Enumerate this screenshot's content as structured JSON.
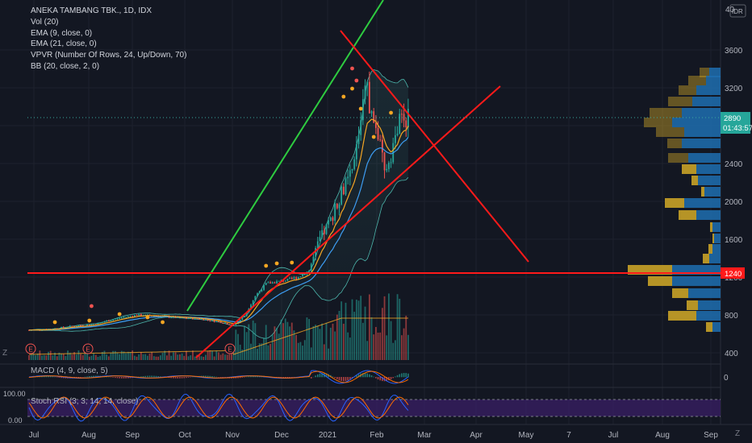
{
  "legend": {
    "symbol": "ANEKA TAMBANG TBK., 1D, IDX",
    "lines": [
      "Vol (20)",
      "EMA (9, close, 0)",
      "EMA (21, close, 0)",
      "VPVR (Number Of Rows, 24, Up/Down, 70)",
      "BB (20, close, 2, 0)"
    ]
  },
  "currency_label": "IDR",
  "macd_label": "MACD (4, 9, close, 5)",
  "stoch_label": "Stoch RSI (3, 3, 14, 14, close)",
  "price_tag": "2890",
  "countdown_tag": "01:43:57",
  "level_tag": "1240",
  "macd_zero": "0",
  "stoch_ticks": [
    "100.00",
    "0.00"
  ],
  "top_axis_partial": "40",
  "corner_buttons": [
    "Z",
    "Z"
  ],
  "colors": {
    "bg": "#131722",
    "up": "#26a69a",
    "down": "#ef5350",
    "ema9": "#f5a623",
    "ema21": "#3d9df2",
    "bb": "#4db6ac",
    "green_line": "#2ecc40",
    "red_line": "#ff1a1a",
    "vp_up": "#1e6fb0",
    "vp_down": "#c9a227",
    "stoch_band": "#3a1f66"
  },
  "chart_data": {
    "type": "candlestick",
    "title": "ANEKA TAMBANG TBK., 1D, IDX",
    "y_ticks": [
      400,
      800,
      1200,
      1600,
      2000,
      2400,
      2800,
      3200,
      3600
    ],
    "ylim": [
      350,
      3950
    ],
    "x_ticks": [
      "Jul",
      "Aug",
      "Sep",
      "Oct",
      "Nov",
      "Dec",
      "2021",
      "Feb",
      "Mar",
      "Apr",
      "May",
      "7",
      "Jul",
      "Aug",
      "Sep"
    ],
    "price_series": [
      [
        0,
        640
      ],
      [
        10,
        650
      ],
      [
        20,
        680
      ],
      [
        30,
        700
      ],
      [
        40,
        760
      ],
      [
        50,
        800
      ],
      [
        60,
        790
      ],
      [
        70,
        770
      ],
      [
        80,
        760
      ],
      [
        90,
        720
      ],
      [
        95,
        690
      ],
      [
        100,
        790
      ],
      [
        105,
        1000
      ],
      [
        110,
        1130
      ],
      [
        115,
        1150
      ],
      [
        120,
        1170
      ],
      [
        125,
        1200
      ],
      [
        130,
        1270
      ],
      [
        135,
        1600
      ],
      [
        140,
        1800
      ],
      [
        145,
        2100
      ],
      [
        150,
        2300
      ],
      [
        153,
        2700
      ],
      [
        156,
        3300
      ],
      [
        159,
        2900
      ],
      [
        162,
        2700
      ],
      [
        165,
        2300
      ],
      [
        168,
        2500
      ],
      [
        172,
        2850
      ],
      [
        176,
        2890
      ]
    ],
    "annotations": {
      "support_level": 1240,
      "last_price": 2890
    }
  }
}
